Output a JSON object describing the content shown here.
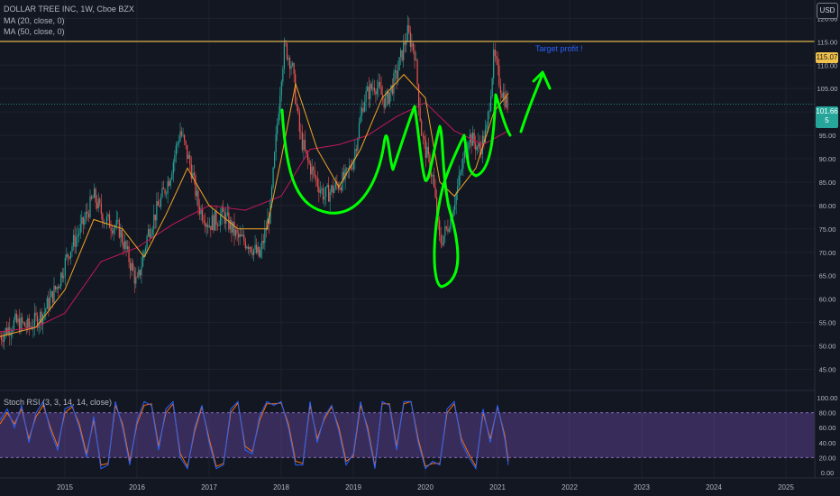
{
  "header": {
    "symbol_title": "DOLLAR TREE INC, 1W, Cboe BZX",
    "ma20_label": "MA (20, close, 0)",
    "ma50_label": "MA (50, close, 0)",
    "stoch_label": "Stoch RSI (3, 3, 14, 14, close)",
    "currency": "USD"
  },
  "annotations": {
    "target_text": "Target profit !",
    "target_price_label": "115.07",
    "current_price_label": "101.66",
    "current_price_sub": "5"
  },
  "colors": {
    "background": "#131722",
    "up_candle": "#26a69a",
    "down_candle": "#ef5350",
    "ma20": "#f5a623",
    "ma50": "#c2185b",
    "target_line": "#f0c14b",
    "drawing": "#00ff00",
    "stoch_k": "#2962ff",
    "stoch_d": "#ff6d00",
    "stoch_band": "#7e57c2"
  },
  "chart_data": [
    {
      "type": "candlestick",
      "title": "DOLLAR TREE INC, 1W, Cboe BZX",
      "x_tick_labels": [
        "2015",
        "2016",
        "2017",
        "2018",
        "2019",
        "2020",
        "2021",
        "2022",
        "2023",
        "2024",
        "2025"
      ],
      "y_tick_labels": [
        "45.00",
        "50.00",
        "55.00",
        "60.00",
        "65.00",
        "70.00",
        "75.00",
        "80.00",
        "85.00",
        "90.00",
        "95.00",
        "100.00",
        "105.00",
        "110.00",
        "115.00",
        "120.00"
      ],
      "ylim": [
        42,
        122
      ],
      "xlim": [
        2014.1,
        2025.4
      ],
      "price_path": [
        [
          2014.1,
          52
        ],
        [
          2014.3,
          55
        ],
        [
          2014.5,
          54
        ],
        [
          2014.7,
          57
        ],
        [
          2014.9,
          63
        ],
        [
          2015.05,
          70
        ],
        [
          2015.25,
          76
        ],
        [
          2015.4,
          82
        ],
        [
          2015.55,
          77
        ],
        [
          2015.75,
          75
        ],
        [
          2015.9,
          68
        ],
        [
          2016.0,
          63
        ],
        [
          2016.15,
          74
        ],
        [
          2016.3,
          80
        ],
        [
          2016.45,
          86
        ],
        [
          2016.6,
          96
        ],
        [
          2016.75,
          88
        ],
        [
          2016.85,
          80
        ],
        [
          2017.0,
          76
        ],
        [
          2017.2,
          78
        ],
        [
          2017.4,
          73
        ],
        [
          2017.55,
          72
        ],
        [
          2017.7,
          69
        ],
        [
          2017.85,
          79
        ],
        [
          2018.0,
          108
        ],
        [
          2018.05,
          114
        ],
        [
          2018.15,
          110
        ],
        [
          2018.25,
          96
        ],
        [
          2018.35,
          90
        ],
        [
          2018.5,
          85
        ],
        [
          2018.6,
          82
        ],
        [
          2018.75,
          84
        ],
        [
          2018.9,
          86
        ],
        [
          2019.0,
          90
        ],
        [
          2019.15,
          103
        ],
        [
          2019.3,
          106
        ],
        [
          2019.45,
          102
        ],
        [
          2019.6,
          108
        ],
        [
          2019.75,
          117
        ],
        [
          2019.85,
          113
        ],
        [
          2019.95,
          95
        ],
        [
          2020.1,
          86
        ],
        [
          2020.2,
          72
        ],
        [
          2020.3,
          75
        ],
        [
          2020.45,
          84
        ],
        [
          2020.6,
          95
        ],
        [
          2020.75,
          92
        ],
        [
          2020.85,
          96
        ],
        [
          2020.95,
          112
        ],
        [
          2021.05,
          105
        ],
        [
          2021.15,
          101
        ]
      ],
      "ma20": [
        [
          2014.1,
          52
        ],
        [
          2014.6,
          54
        ],
        [
          2015.0,
          62
        ],
        [
          2015.4,
          77
        ],
        [
          2015.8,
          75
        ],
        [
          2016.1,
          69
        ],
        [
          2016.4,
          78
        ],
        [
          2016.7,
          88
        ],
        [
          2017.0,
          80
        ],
        [
          2017.4,
          75
        ],
        [
          2017.8,
          75
        ],
        [
          2018.0,
          90
        ],
        [
          2018.2,
          106
        ],
        [
          2018.5,
          92
        ],
        [
          2018.8,
          84
        ],
        [
          2019.1,
          92
        ],
        [
          2019.4,
          103
        ],
        [
          2019.7,
          108
        ],
        [
          2020.0,
          103
        ],
        [
          2020.2,
          85
        ],
        [
          2020.4,
          82
        ],
        [
          2020.7,
          88
        ],
        [
          2020.95,
          100
        ],
        [
          2021.15,
          104
        ]
      ],
      "ma50": [
        [
          2014.1,
          53
        ],
        [
          2014.6,
          54
        ],
        [
          2015.0,
          57
        ],
        [
          2015.5,
          68
        ],
        [
          2016.0,
          71
        ],
        [
          2016.5,
          76
        ],
        [
          2017.0,
          80
        ],
        [
          2017.5,
          79
        ],
        [
          2018.0,
          82
        ],
        [
          2018.4,
          92
        ],
        [
          2018.8,
          93
        ],
        [
          2019.2,
          95
        ],
        [
          2019.6,
          99
        ],
        [
          2020.0,
          102
        ],
        [
          2020.4,
          96
        ],
        [
          2020.8,
          93
        ],
        [
          2021.15,
          96
        ]
      ],
      "target_level": 115.07,
      "current_price": 101.66
    },
    {
      "type": "line",
      "title": "Stoch RSI (3, 3, 14, 14, close)",
      "y_tick_labels": [
        "0.00",
        "20.00",
        "40.00",
        "60.00",
        "80.00",
        "100.00"
      ],
      "ylim": [
        -5,
        105
      ],
      "band": [
        20,
        80
      ],
      "x": [
        2014.1,
        2014.2,
        2014.3,
        2014.4,
        2014.5,
        2014.6,
        2014.7,
        2014.8,
        2014.9,
        2015.0,
        2015.1,
        2015.2,
        2015.3,
        2015.4,
        2015.5,
        2015.6,
        2015.7,
        2015.8,
        2015.9,
        2016.0,
        2016.1,
        2016.2,
        2016.3,
        2016.4,
        2016.5,
        2016.6,
        2016.7,
        2016.8,
        2016.9,
        2017.0,
        2017.1,
        2017.2,
        2017.3,
        2017.4,
        2017.5,
        2017.6,
        2017.7,
        2017.8,
        2017.9,
        2018.0,
        2018.1,
        2018.2,
        2018.3,
        2018.4,
        2018.5,
        2018.6,
        2018.7,
        2018.8,
        2018.9,
        2019.0,
        2019.1,
        2019.2,
        2019.3,
        2019.4,
        2019.5,
        2019.6,
        2019.7,
        2019.8,
        2019.9,
        2020.0,
        2020.1,
        2020.2,
        2020.3,
        2020.4,
        2020.5,
        2020.6,
        2020.7,
        2020.8,
        2020.9,
        2021.0,
        2021.1,
        2021.15
      ],
      "series": [
        {
          "values": [
            70,
            85,
            60,
            90,
            40,
            80,
            95,
            55,
            30,
            85,
            90,
            60,
            20,
            75,
            5,
            10,
            95,
            60,
            10,
            70,
            95,
            90,
            30,
            85,
            95,
            20,
            5,
            60,
            90,
            40,
            5,
            10,
            85,
            95,
            30,
            25,
            75,
            95,
            90,
            95,
            60,
            10,
            10,
            95,
            40,
            75,
            90,
            55,
            10,
            25,
            95,
            55,
            5,
            95,
            90,
            30,
            95,
            95,
            40,
            5,
            15,
            10,
            85,
            95,
            40,
            20,
            5,
            85,
            40,
            90,
            45,
            10
          ]
        },
        {
          "values": [
            65,
            80,
            65,
            85,
            45,
            75,
            90,
            60,
            35,
            80,
            88,
            65,
            25,
            70,
            10,
            12,
            90,
            65,
            15,
            65,
            90,
            92,
            35,
            80,
            92,
            25,
            8,
            55,
            88,
            45,
            8,
            12,
            80,
            93,
            35,
            28,
            70,
            92,
            92,
            93,
            65,
            15,
            12,
            90,
            45,
            72,
            88,
            60,
            15,
            22,
            90,
            60,
            8,
            92,
            92,
            35,
            92,
            95,
            45,
            8,
            12,
            12,
            80,
            92,
            45,
            25,
            8,
            80,
            45,
            88,
            50,
            15
          ]
        }
      ]
    }
  ]
}
